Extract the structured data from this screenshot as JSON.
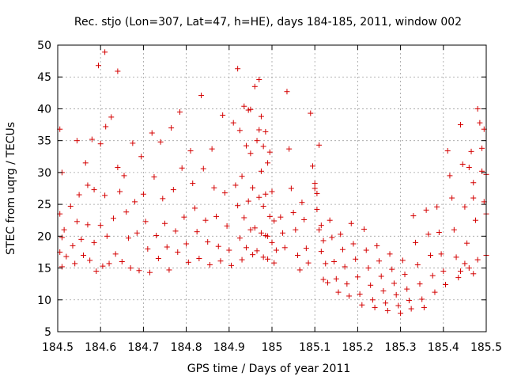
{
  "chart_data": {
    "type": "scatter",
    "title": "Rec. stjo (Lon=307, Lat=47, h=HE), days 184-185, 2011, window 002",
    "xlabel": "GPS time / Days of year 2011",
    "ylabel": "STEC from uqrg / TECUs",
    "xlim": [
      184.5,
      185.5
    ],
    "ylim": [
      5,
      50
    ],
    "x_ticks": [
      "184.5",
      "184.6",
      "184.7",
      "184.8",
      "184.9",
      "185",
      "185.1",
      "185.2",
      "185.3",
      "185.4",
      "185.5"
    ],
    "y_ticks": [
      "5",
      "10",
      "15",
      "20",
      "25",
      "30",
      "35",
      "40",
      "45",
      "50"
    ],
    "grid": true,
    "marker": "plus",
    "color": "#d40000",
    "series": [
      {
        "points": [
          [
            184.505,
            36.8
          ],
          [
            184.51,
            30.0
          ],
          [
            184.505,
            23.5
          ],
          [
            184.51,
            19.8
          ],
          [
            184.505,
            17.5
          ],
          [
            184.51,
            15.2
          ],
          [
            184.515,
            21.0
          ],
          [
            184.52,
            16.8
          ],
          [
            184.53,
            24.7
          ],
          [
            184.535,
            18.5
          ],
          [
            184.54,
            15.7
          ],
          [
            184.545,
            35.0
          ],
          [
            184.55,
            26.5
          ],
          [
            184.545,
            22.3
          ],
          [
            184.555,
            19.5
          ],
          [
            184.56,
            17.0
          ],
          [
            184.565,
            31.5
          ],
          [
            184.57,
            28.0
          ],
          [
            184.57,
            21.8
          ],
          [
            184.575,
            16.2
          ],
          [
            184.58,
            35.2
          ],
          [
            184.585,
            27.3
          ],
          [
            184.585,
            19.0
          ],
          [
            184.59,
            14.5
          ],
          [
            184.595,
            46.8
          ],
          [
            184.6,
            34.5
          ],
          [
            184.6,
            21.7
          ],
          [
            184.605,
            15.3
          ],
          [
            184.61,
            48.9
          ],
          [
            184.612,
            37.2
          ],
          [
            184.61,
            26.4
          ],
          [
            184.615,
            20.0
          ],
          [
            184.62,
            15.7
          ],
          [
            184.625,
            38.7
          ],
          [
            184.63,
            22.8
          ],
          [
            184.635,
            17.2
          ],
          [
            184.64,
            45.9
          ],
          [
            184.64,
            30.8
          ],
          [
            184.645,
            27.0
          ],
          [
            184.65,
            16.0
          ],
          [
            184.655,
            29.5
          ],
          [
            184.66,
            23.8
          ],
          [
            184.665,
            19.7
          ],
          [
            184.67,
            15.0
          ],
          [
            184.675,
            34.6
          ],
          [
            184.68,
            25.4
          ],
          [
            184.685,
            20.5
          ],
          [
            184.69,
            14.6
          ],
          [
            184.695,
            32.5
          ],
          [
            184.7,
            26.6
          ],
          [
            184.705,
            22.3
          ],
          [
            184.71,
            18.0
          ],
          [
            184.715,
            14.3
          ],
          [
            184.72,
            36.2
          ],
          [
            184.725,
            29.3
          ],
          [
            184.73,
            20.1
          ],
          [
            184.735,
            16.5
          ],
          [
            184.74,
            34.8
          ],
          [
            184.745,
            25.9
          ],
          [
            184.75,
            22.0
          ],
          [
            184.755,
            18.3
          ],
          [
            184.76,
            14.7
          ],
          [
            184.765,
            37.0
          ],
          [
            184.77,
            27.3
          ],
          [
            184.775,
            20.8
          ],
          [
            184.78,
            17.5
          ],
          [
            184.785,
            39.5
          ],
          [
            184.79,
            30.7
          ],
          [
            184.795,
            23.0
          ],
          [
            184.8,
            18.8
          ],
          [
            184.805,
            15.9
          ],
          [
            184.81,
            33.4
          ],
          [
            184.815,
            28.3
          ],
          [
            184.82,
            24.4
          ],
          [
            184.825,
            20.7
          ],
          [
            184.83,
            16.5
          ],
          [
            184.835,
            42.1
          ],
          [
            184.84,
            30.6
          ],
          [
            184.845,
            22.5
          ],
          [
            184.85,
            19.1
          ],
          [
            184.855,
            15.5
          ],
          [
            184.86,
            33.7
          ],
          [
            184.865,
            27.6
          ],
          [
            184.87,
            23.1
          ],
          [
            184.875,
            18.4
          ],
          [
            184.88,
            16.1
          ],
          [
            184.885,
            39.0
          ],
          [
            184.89,
            26.8
          ],
          [
            184.895,
            21.6
          ],
          [
            184.9,
            17.8
          ],
          [
            184.905,
            15.4
          ],
          [
            184.91,
            37.8
          ],
          [
            184.915,
            28.0
          ],
          [
            184.92,
            24.8
          ],
          [
            184.925,
            19.7
          ],
          [
            184.93,
            16.3
          ],
          [
            184.935,
            40.4
          ],
          [
            184.94,
            34.2
          ],
          [
            184.945,
            25.5
          ],
          [
            184.95,
            21.0
          ],
          [
            184.955,
            17.1
          ],
          [
            184.96,
            43.5
          ],
          [
            184.965,
            35.0
          ],
          [
            184.97,
            26.1
          ],
          [
            184.975,
            20.5
          ],
          [
            184.98,
            16.7
          ],
          [
            184.985,
            36.4
          ],
          [
            184.99,
            31.5
          ],
          [
            184.995,
            23.1
          ],
          [
            185.0,
            19.0
          ],
          [
            185.005,
            15.8
          ],
          [
            184.92,
            46.3
          ],
          [
            184.925,
            36.6
          ],
          [
            184.93,
            29.4
          ],
          [
            184.935,
            22.9
          ],
          [
            184.94,
            18.2
          ],
          [
            184.945,
            39.8
          ],
          [
            184.95,
            33.0
          ],
          [
            184.955,
            27.6
          ],
          [
            184.96,
            21.3
          ],
          [
            184.965,
            17.7
          ],
          [
            184.97,
            36.7
          ],
          [
            184.975,
            30.2
          ],
          [
            184.98,
            24.7
          ],
          [
            184.985,
            20.1
          ],
          [
            184.99,
            16.4
          ],
          [
            184.97,
            44.6
          ],
          [
            184.975,
            38.8
          ],
          [
            184.98,
            34.1
          ],
          [
            184.985,
            26.6
          ],
          [
            184.99,
            20.0
          ],
          [
            184.995,
            33.2
          ],
          [
            185.0,
            27.0
          ],
          [
            185.005,
            22.4
          ],
          [
            185.01,
            17.8
          ],
          [
            184.95,
            39.9
          ],
          [
            185.02,
            23.0
          ],
          [
            185.025,
            20.5
          ],
          [
            185.03,
            18.2
          ],
          [
            185.035,
            42.7
          ],
          [
            185.04,
            33.7
          ],
          [
            185.045,
            27.5
          ],
          [
            185.05,
            23.7
          ],
          [
            185.055,
            21.0
          ],
          [
            185.06,
            17.0
          ],
          [
            185.065,
            14.7
          ],
          [
            185.07,
            25.3
          ],
          [
            185.075,
            22.6
          ],
          [
            185.08,
            18.1
          ],
          [
            185.085,
            15.8
          ],
          [
            185.09,
            39.3
          ],
          [
            185.095,
            31.0
          ],
          [
            185.1,
            27.5
          ],
          [
            185.105,
            24.2
          ],
          [
            185.11,
            21.0
          ],
          [
            185.115,
            17.6
          ],
          [
            185.12,
            13.2
          ],
          [
            185.1,
            28.3
          ],
          [
            185.105,
            26.7
          ],
          [
            185.11,
            34.3
          ],
          [
            185.115,
            21.7
          ],
          [
            185.12,
            19.3
          ],
          [
            185.125,
            15.7
          ],
          [
            185.13,
            12.7
          ],
          [
            185.135,
            22.5
          ],
          [
            185.14,
            19.8
          ],
          [
            185.145,
            16.0
          ],
          [
            185.15,
            13.3
          ],
          [
            185.155,
            11.2
          ],
          [
            185.16,
            20.3
          ],
          [
            185.165,
            17.9
          ],
          [
            185.17,
            15.2
          ],
          [
            185.175,
            12.5
          ],
          [
            185.18,
            10.6
          ],
          [
            185.185,
            22.0
          ],
          [
            185.19,
            18.8
          ],
          [
            185.195,
            16.4
          ],
          [
            185.2,
            13.6
          ],
          [
            185.205,
            10.9
          ],
          [
            185.21,
            9.2
          ],
          [
            185.215,
            21.1
          ],
          [
            185.22,
            17.8
          ],
          [
            185.225,
            15.0
          ],
          [
            185.23,
            12.3
          ],
          [
            185.235,
            10.0
          ],
          [
            185.24,
            8.8
          ],
          [
            185.245,
            18.5
          ],
          [
            185.25,
            16.1
          ],
          [
            185.255,
            13.7
          ],
          [
            185.26,
            11.4
          ],
          [
            185.265,
            9.5
          ],
          [
            185.27,
            8.3
          ],
          [
            185.275,
            17.2
          ],
          [
            185.28,
            14.8
          ],
          [
            185.285,
            12.6
          ],
          [
            185.29,
            10.8
          ],
          [
            185.295,
            9.1
          ],
          [
            185.3,
            7.9
          ],
          [
            185.305,
            16.2
          ],
          [
            185.31,
            14.0
          ],
          [
            185.315,
            11.7
          ],
          [
            185.32,
            9.9
          ],
          [
            185.325,
            8.6
          ],
          [
            185.33,
            23.2
          ],
          [
            185.335,
            19.0
          ],
          [
            185.34,
            15.5
          ],
          [
            185.345,
            12.5
          ],
          [
            185.35,
            10.1
          ],
          [
            185.355,
            8.8
          ],
          [
            185.36,
            24.1
          ],
          [
            185.365,
            20.3
          ],
          [
            185.37,
            17.0
          ],
          [
            185.375,
            13.8
          ],
          [
            185.38,
            11.2
          ],
          [
            185.385,
            24.6
          ],
          [
            185.39,
            20.6
          ],
          [
            185.395,
            17.2
          ],
          [
            185.4,
            14.5
          ],
          [
            185.405,
            12.4
          ],
          [
            185.41,
            33.4
          ],
          [
            185.415,
            29.5
          ],
          [
            185.42,
            26.0
          ],
          [
            185.425,
            21.0
          ],
          [
            185.43,
            16.7
          ],
          [
            185.435,
            13.5
          ],
          [
            185.44,
            37.5
          ],
          [
            185.445,
            31.3
          ],
          [
            185.45,
            24.6
          ],
          [
            185.455,
            18.9
          ],
          [
            185.46,
            15.0
          ],
          [
            185.465,
            33.3
          ],
          [
            185.47,
            28.4
          ],
          [
            185.475,
            22.5
          ],
          [
            185.48,
            16.3
          ],
          [
            185.485,
            37.8
          ],
          [
            185.49,
            33.8
          ],
          [
            185.495,
            25.4
          ],
          [
            185.5,
            17.0
          ],
          [
            185.48,
            40.0
          ],
          [
            185.495,
            36.8
          ],
          [
            185.46,
            30.8
          ],
          [
            185.47,
            26.0
          ],
          [
            185.49,
            30.2
          ],
          [
            185.5,
            23.5
          ],
          [
            185.5,
            29.7
          ],
          [
            185.44,
            14.5
          ],
          [
            185.45,
            15.7
          ],
          [
            185.47,
            14.1
          ]
        ]
      }
    ]
  }
}
